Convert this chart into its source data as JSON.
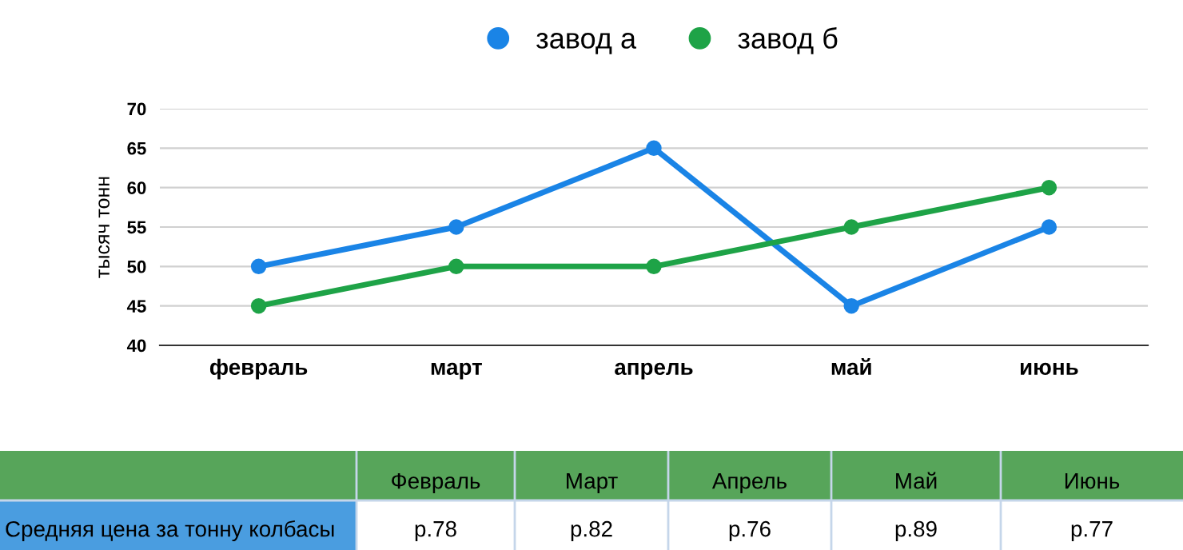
{
  "chart_data": [
    {
      "type": "line",
      "ylabel": "тысяч тонн",
      "categories": [
        "февраль",
        "март",
        "апрель",
        "май",
        "июнь"
      ],
      "series": [
        {
          "name": "завод а",
          "color": "#1a84e6",
          "values": [
            50,
            55,
            65,
            45,
            55
          ]
        },
        {
          "name": "завод б",
          "color": "#1ea347",
          "values": [
            45,
            50,
            50,
            55,
            60
          ]
        }
      ],
      "ylim": [
        40,
        70
      ],
      "yticks": [
        40,
        45,
        50,
        55,
        60,
        65,
        70
      ],
      "grid": "y",
      "legend": "top",
      "marker": "circle",
      "line_style": "solid"
    },
    {
      "type": "other",
      "ylabel": "Средняя цена за тонну колбасы",
      "categories": [
        "Февраль",
        "Март",
        "Апрель",
        "Май",
        "Июнь"
      ],
      "value_labels": [
        "р.78",
        "р.82",
        "р.76",
        "р.89",
        "р.77"
      ]
    }
  ]
}
